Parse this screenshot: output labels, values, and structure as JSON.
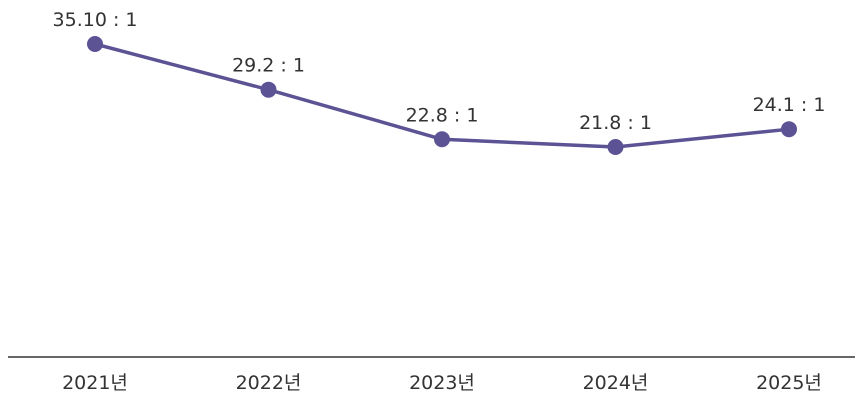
{
  "chart_data": {
    "type": "line",
    "categories": [
      "2021년",
      "2022년",
      "2023년",
      "2024년",
      "2025년"
    ],
    "series": [
      {
        "values": [
          35.1,
          29.2,
          22.8,
          21.8,
          24.1
        ],
        "data_labels": [
          "35.10 : 1",
          "29.2 : 1",
          "22.8 : 1",
          "21.8 : 1",
          "24.1 : 1"
        ],
        "color": "#5b5394"
      }
    ],
    "title": "",
    "xlabel": "",
    "ylabel": "",
    "ylim": [
      0,
      36
    ],
    "grid": false,
    "legend": "none",
    "drop_line_color": "#bfbfbf",
    "axis_color": "#333333"
  }
}
